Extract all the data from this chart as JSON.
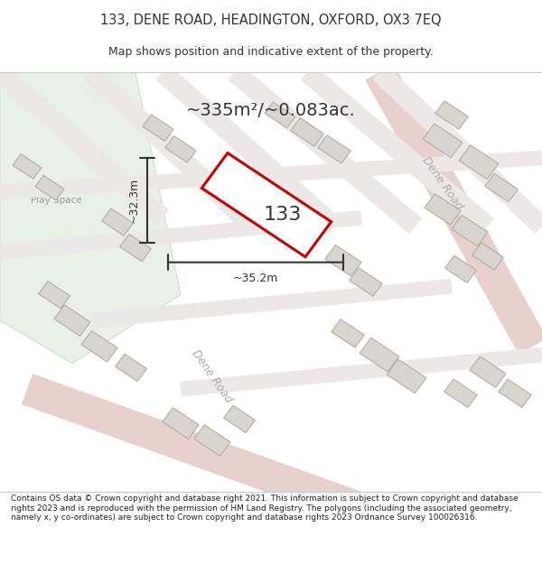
{
  "title_line1": "133, DENE ROAD, HEADINGTON, OXFORD, OX3 7EQ",
  "title_line2": "Map shows position and indicative extent of the property.",
  "area_label": "~335m²/~0.083ac.",
  "plot_number": "133",
  "dim_width": "~35.2m",
  "dim_height": "~32.3m",
  "play_space_label": "Play Space",
  "dene_road_label1": "Dene Road",
  "dene_road_label2": "Dene Road",
  "footer_text": "Contains OS data © Crown copyright and database right 2021. This information is subject to Crown copyright and database rights 2023 and is reproduced with the permission of HM Land Registry. The polygons (including the associated geometry, namely x, y co-ordinates) are subject to Crown copyright and database rights 2023 Ordnance Survey 100026316.",
  "map_bg": "#f0eeee",
  "green_area_color": "#e8f0e8",
  "plot_outline": "#cc0000",
  "building_fill": "#d8d4d0",
  "building_outline": "#b0a8a0",
  "dim_line_color": "#333333",
  "text_color": "#333333",
  "roads": [
    [
      420,
      490,
      590,
      170,
      26,
      "#e8d0cc"
    ],
    [
      30,
      120,
      400,
      -20,
      26,
      "#e8d0cc"
    ],
    [
      0,
      490,
      180,
      320,
      16,
      "#ece8e8"
    ],
    [
      100,
      490,
      280,
      310,
      16,
      "#ece8e8"
    ],
    [
      180,
      490,
      370,
      310,
      16,
      "#ece8e8"
    ],
    [
      260,
      490,
      460,
      310,
      16,
      "#ece8e8"
    ],
    [
      340,
      490,
      540,
      310,
      16,
      "#ece8e8"
    ],
    [
      420,
      490,
      600,
      310,
      16,
      "#ece8e8"
    ],
    [
      0,
      350,
      600,
      390,
      12,
      "#ece8e8"
    ],
    [
      0,
      280,
      400,
      320,
      12,
      "#ece8e8"
    ],
    [
      100,
      200,
      500,
      240,
      12,
      "#ece8e8"
    ],
    [
      200,
      120,
      600,
      160,
      12,
      "#ece8e8"
    ]
  ],
  "buildings": [
    [
      490,
      410,
      38,
      22,
      -35
    ],
    [
      530,
      385,
      38,
      22,
      -35
    ],
    [
      555,
      355,
      32,
      18,
      -35
    ],
    [
      500,
      440,
      32,
      18,
      -35
    ],
    [
      490,
      330,
      35,
      20,
      -35
    ],
    [
      520,
      305,
      35,
      20,
      -35
    ],
    [
      540,
      275,
      30,
      18,
      -35
    ],
    [
      510,
      260,
      30,
      18,
      -35
    ],
    [
      420,
      160,
      38,
      22,
      -35
    ],
    [
      450,
      135,
      38,
      22,
      -35
    ],
    [
      385,
      185,
      32,
      18,
      -35
    ],
    [
      110,
      170,
      35,
      20,
      -35
    ],
    [
      80,
      200,
      35,
      20,
      -35
    ],
    [
      60,
      230,
      30,
      18,
      -35
    ],
    [
      145,
      145,
      30,
      18,
      -35
    ],
    [
      200,
      80,
      35,
      20,
      -35
    ],
    [
      235,
      60,
      35,
      20,
      -35
    ],
    [
      265,
      85,
      30,
      18,
      -35
    ],
    [
      380,
      270,
      35,
      20,
      -35
    ],
    [
      405,
      245,
      32,
      18,
      -35
    ],
    [
      150,
      285,
      30,
      18,
      -35
    ],
    [
      130,
      315,
      30,
      18,
      -35
    ],
    [
      340,
      420,
      32,
      18,
      -35
    ],
    [
      370,
      400,
      32,
      18,
      -35
    ],
    [
      310,
      440,
      30,
      16,
      -35
    ],
    [
      540,
      140,
      35,
      20,
      -35
    ],
    [
      570,
      115,
      32,
      18,
      -35
    ],
    [
      510,
      115,
      32,
      18,
      -35
    ],
    [
      30,
      380,
      28,
      16,
      -35
    ],
    [
      55,
      355,
      28,
      16,
      -35
    ],
    [
      200,
      400,
      30,
      17,
      -35
    ],
    [
      175,
      425,
      30,
      17,
      -35
    ]
  ]
}
